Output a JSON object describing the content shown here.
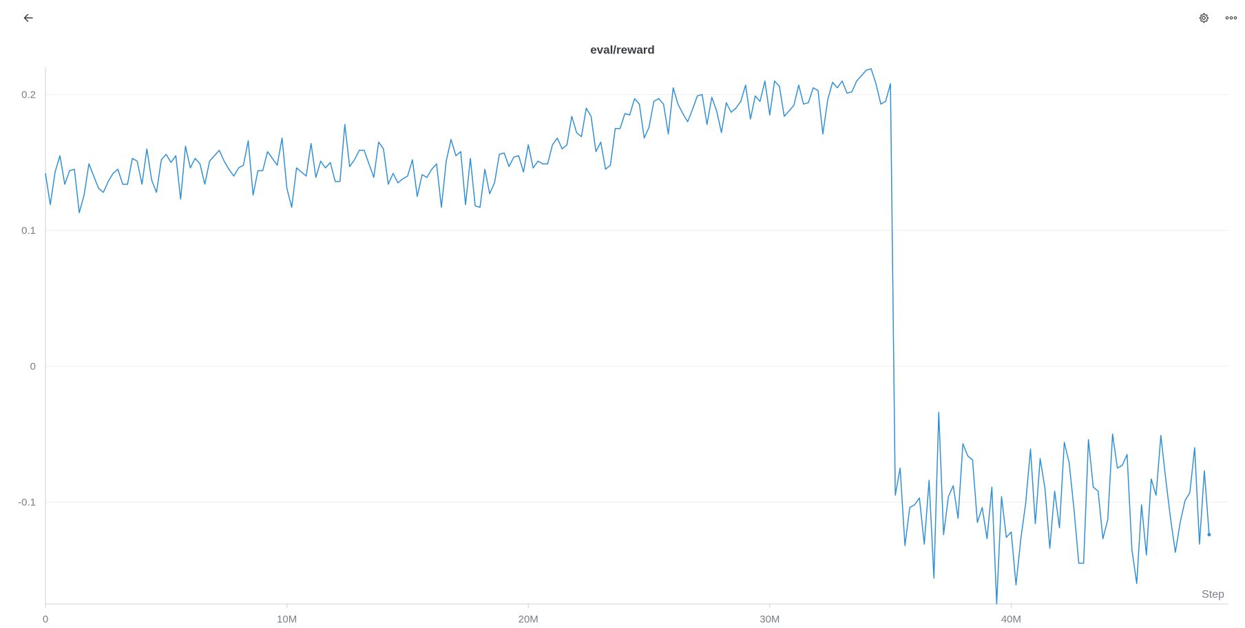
{
  "header": {
    "back_icon": "arrow-left-icon",
    "settings_icon": "gear-icon",
    "more_icon": "more-horizontal-icon"
  },
  "chart_data": {
    "type": "line",
    "title": "eval/reward",
    "xlabel": "Step",
    "ylabel": "",
    "xlim": [
      0,
      49000000
    ],
    "ylim": [
      -0.175,
      0.22
    ],
    "x_ticks": [
      0,
      10000000,
      20000000,
      30000000,
      40000000
    ],
    "x_tick_labels": [
      "0",
      "10M",
      "20M",
      "30M",
      "40M"
    ],
    "y_ticks": [
      0.2,
      0.1,
      0,
      -0.1
    ],
    "y_tick_labels": [
      "0.2",
      "0.1",
      "0",
      "-0.1"
    ],
    "grid": "horizontal",
    "legend": "none",
    "colors": {
      "line": "#2f8fd6",
      "grid": "#eeeeee",
      "axis": "#d0d2d6"
    },
    "series": [
      {
        "x_start": 0,
        "x_step": 200000,
        "values": [
          0.142,
          0.119,
          0.143,
          0.155,
          0.134,
          0.144,
          0.145,
          0.113,
          0.126,
          0.149,
          0.14,
          0.131,
          0.128,
          0.136,
          0.142,
          0.145,
          0.134,
          0.134,
          0.153,
          0.151,
          0.134,
          0.16,
          0.137,
          0.128,
          0.152,
          0.156,
          0.15,
          0.155,
          0.123,
          0.162,
          0.146,
          0.153,
          0.149,
          0.134,
          0.151,
          0.155,
          0.159,
          0.151,
          0.145,
          0.14,
          0.146,
          0.148,
          0.166,
          0.126,
          0.144,
          0.144,
          0.158,
          0.153,
          0.148,
          0.168,
          0.131,
          0.117,
          0.146,
          0.143,
          0.14,
          0.164,
          0.139,
          0.151,
          0.146,
          0.15,
          0.136,
          0.136,
          0.178,
          0.147,
          0.152,
          0.159,
          0.159,
          0.149,
          0.139,
          0.165,
          0.16,
          0.134,
          0.142,
          0.135,
          0.138,
          0.14,
          0.152,
          0.125,
          0.141,
          0.139,
          0.145,
          0.149,
          0.117,
          0.151,
          0.167,
          0.155,
          0.158,
          0.119,
          0.153,
          0.118,
          0.117,
          0.145,
          0.127,
          0.135,
          0.156,
          0.157,
          0.147,
          0.154,
          0.155,
          0.143,
          0.163,
          0.146,
          0.151,
          0.149,
          0.149,
          0.163,
          0.168,
          0.16,
          0.163,
          0.184,
          0.172,
          0.169,
          0.19,
          0.184,
          0.158,
          0.165,
          0.145,
          0.148,
          0.175,
          0.175,
          0.186,
          0.185,
          0.197,
          0.193,
          0.168,
          0.176,
          0.195,
          0.197,
          0.193,
          0.171,
          0.205,
          0.193,
          0.186,
          0.18,
          0.189,
          0.199,
          0.2,
          0.178,
          0.198,
          0.188,
          0.172,
          0.194,
          0.187,
          0.19,
          0.195,
          0.207,
          0.182,
          0.199,
          0.195,
          0.21,
          0.185,
          0.21,
          0.206,
          0.184,
          0.188,
          0.192,
          0.207,
          0.193,
          0.194,
          0.205,
          0.203,
          0.171,
          0.196,
          0.209,
          0.205,
          0.21,
          0.201,
          0.202,
          0.21,
          0.214,
          0.218,
          0.219,
          0.208,
          0.193,
          0.195,
          0.208,
          -0.095,
          -0.075,
          -0.132,
          -0.104,
          -0.102,
          -0.097,
          -0.131,
          -0.084,
          -0.156,
          -0.034,
          -0.124,
          -0.096,
          -0.088,
          -0.112,
          -0.057,
          -0.066,
          -0.069,
          -0.115,
          -0.104,
          -0.127,
          -0.089,
          -0.175,
          -0.096,
          -0.126,
          -0.122,
          -0.161,
          -0.127,
          -0.101,
          -0.061,
          -0.116,
          -0.068,
          -0.09,
          -0.134,
          -0.092,
          -0.119,
          -0.056,
          -0.071,
          -0.105,
          -0.145,
          -0.145,
          -0.054,
          -0.089,
          -0.092,
          -0.127,
          -0.113,
          -0.05,
          -0.075,
          -0.073,
          -0.065,
          -0.135,
          -0.16,
          -0.102,
          -0.139,
          -0.083,
          -0.095,
          -0.051,
          -0.083,
          -0.112,
          -0.137,
          -0.115,
          -0.099,
          -0.093,
          -0.06,
          -0.131,
          -0.077,
          -0.124
        ]
      }
    ]
  }
}
